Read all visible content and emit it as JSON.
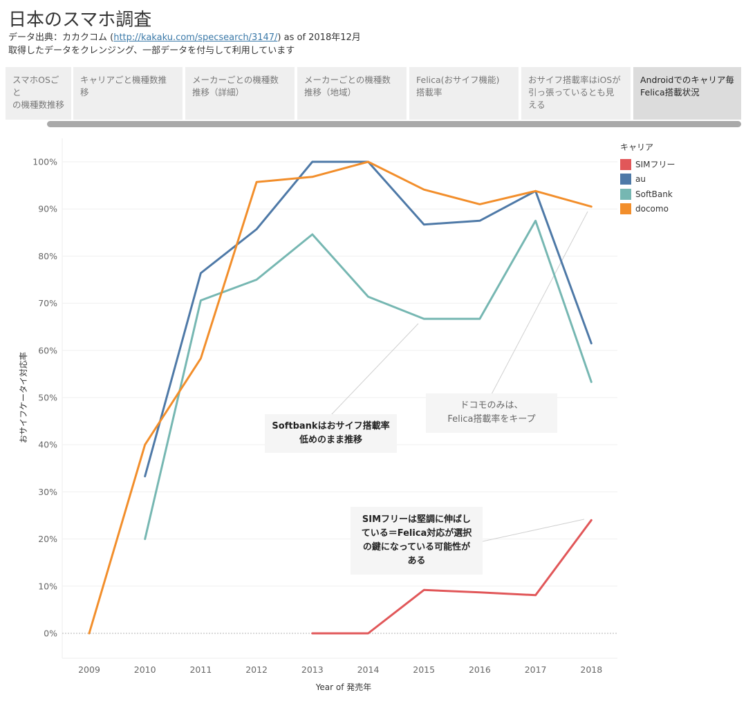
{
  "header": {
    "title": "日本のスマホ調査",
    "source_prefix": "データ出典：カカクコム (",
    "source_link": "http://kakaku.com/specsearch/3147/",
    "source_suffix": ") as of 2018年12月",
    "note": "取得したデータをクレンジング、一部データを付与して利用しています"
  },
  "tabs": [
    {
      "line1": "スマホOSごと",
      "line2": "の機種数推移",
      "line3": "",
      "active": false
    },
    {
      "line1": "キャリアごと機種数推",
      "line2": "移",
      "line3": "",
      "active": false
    },
    {
      "line1": "メーカーごとの機種数",
      "line2": "推移（詳細）",
      "line3": "",
      "active": false
    },
    {
      "line1": "メーカーごとの機種数",
      "line2": "推移（地域）",
      "line3": "",
      "active": false
    },
    {
      "line1": "Felica(おサイフ機能)",
      "line2": "搭載率",
      "line3": "",
      "active": false
    },
    {
      "line1": "おサイフ搭載率はiOSが",
      "line2": "引っ張っているとも見",
      "line3": "える",
      "active": false
    },
    {
      "line1": "Androidでのキャリア毎",
      "line2": "Felica搭載状況",
      "line3": "",
      "active": true
    }
  ],
  "legend": {
    "title": "キャリア"
  },
  "annotations": {
    "softbank": [
      "Softbankはおサイフ搭載率",
      "低めのまま推移"
    ],
    "docomo": [
      "ドコモのみは、",
      "Felica搭載率をキープ"
    ],
    "simfree": [
      "SIMフリーは堅調に伸ばし",
      "ている＝Felica対応が選択",
      "の鍵になっている可能性が",
      "ある"
    ]
  },
  "chart_data": {
    "type": "line",
    "xlabel": "Year of 発売年",
    "ylabel": "おサイフケータイ対応率",
    "x": [
      2009,
      2010,
      2011,
      2012,
      2013,
      2014,
      2015,
      2016,
      2017,
      2018
    ],
    "ylim": [
      0,
      100
    ],
    "yticks": [
      "0%",
      "10%",
      "20%",
      "30%",
      "40%",
      "50%",
      "60%",
      "70%",
      "80%",
      "90%",
      "100%"
    ],
    "grid": true,
    "legend_position": "top-right",
    "series": [
      {
        "name": "SIMフリー",
        "color": "#e15759",
        "values": [
          null,
          null,
          null,
          null,
          0,
          0,
          9.2,
          8.7,
          8.1,
          24.0
        ]
      },
      {
        "name": "au",
        "color": "#4e79a7",
        "values": [
          null,
          33.3,
          76.4,
          85.7,
          100,
          100,
          86.7,
          87.5,
          93.8,
          61.5
        ]
      },
      {
        "name": "SoftBank",
        "color": "#76b7b2",
        "values": [
          null,
          20.0,
          70.6,
          75.0,
          84.6,
          71.4,
          66.7,
          66.7,
          87.5,
          53.3
        ]
      },
      {
        "name": "docomo",
        "color": "#f28e2b",
        "values": [
          0,
          40.0,
          58.3,
          95.7,
          96.8,
          100,
          94.1,
          91.0,
          93.8,
          90.5
        ]
      }
    ]
  }
}
